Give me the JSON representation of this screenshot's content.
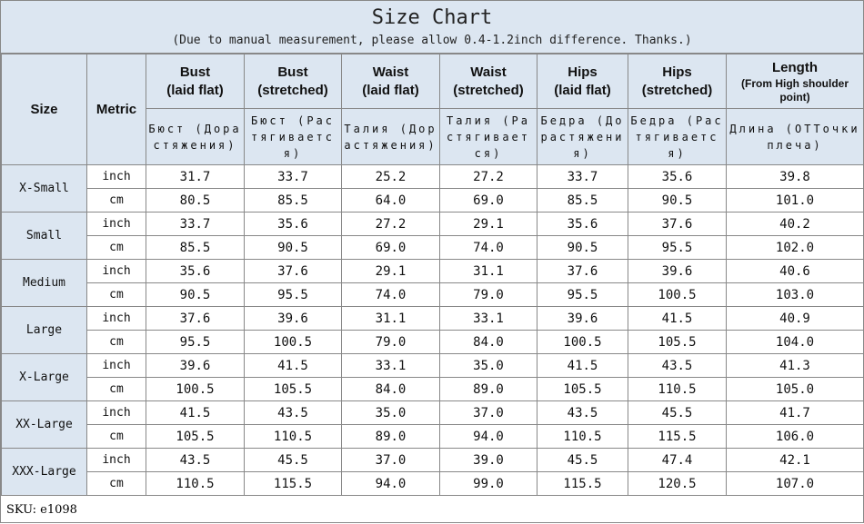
{
  "title": "Size Chart",
  "subtitle": "(Due to manual measurement, please allow 0.4-1.2inch difference. Thanks.)",
  "table": {
    "size_header": "Size",
    "metric_header": "Metric",
    "columns": [
      {
        "en": [
          "Bust",
          "(laid flat)"
        ],
        "ru": "Бюст (Дорастяжения)"
      },
      {
        "en": [
          "Bust",
          "(stretched)"
        ],
        "ru": "Бюст (Растягивается)"
      },
      {
        "en": [
          "Waist",
          "(laid flat)"
        ],
        "ru": "Талия (Дорастяжения)"
      },
      {
        "en": [
          "Waist",
          "(stretched)"
        ],
        "ru": "Талия (Растягивается)"
      },
      {
        "en": [
          "Hips",
          "(laid flat)"
        ],
        "ru": "Бедра (Дорастяжения)"
      },
      {
        "en": [
          "Hips",
          "(stretched)"
        ],
        "ru": "Бедра (Растягивается)"
      },
      {
        "en": [
          "Length",
          "(From High shoulder point)"
        ],
        "ru": "Длина (ОТТочкиплеча)"
      }
    ],
    "rows": [
      {
        "size": "X-Small",
        "units": [
          {
            "unit": "inch",
            "values": [
              "31.7",
              "33.7",
              "25.2",
              "27.2",
              "33.7",
              "35.6",
              "39.8"
            ]
          },
          {
            "unit": "cm",
            "values": [
              "80.5",
              "85.5",
              "64.0",
              "69.0",
              "85.5",
              "90.5",
              "101.0"
            ]
          }
        ]
      },
      {
        "size": "Small",
        "units": [
          {
            "unit": "inch",
            "values": [
              "33.7",
              "35.6",
              "27.2",
              "29.1",
              "35.6",
              "37.6",
              "40.2"
            ]
          },
          {
            "unit": "cm",
            "values": [
              "85.5",
              "90.5",
              "69.0",
              "74.0",
              "90.5",
              "95.5",
              "102.0"
            ]
          }
        ]
      },
      {
        "size": "Medium",
        "units": [
          {
            "unit": "inch",
            "values": [
              "35.6",
              "37.6",
              "29.1",
              "31.1",
              "37.6",
              "39.6",
              "40.6"
            ]
          },
          {
            "unit": "cm",
            "values": [
              "90.5",
              "95.5",
              "74.0",
              "79.0",
              "95.5",
              "100.5",
              "103.0"
            ]
          }
        ]
      },
      {
        "size": "Large",
        "units": [
          {
            "unit": "inch",
            "values": [
              "37.6",
              "39.6",
              "31.1",
              "33.1",
              "39.6",
              "41.5",
              "40.9"
            ]
          },
          {
            "unit": "cm",
            "values": [
              "95.5",
              "100.5",
              "79.0",
              "84.0",
              "100.5",
              "105.5",
              "104.0"
            ]
          }
        ]
      },
      {
        "size": "X-Large",
        "units": [
          {
            "unit": "inch",
            "values": [
              "39.6",
              "41.5",
              "33.1",
              "35.0",
              "41.5",
              "43.5",
              "41.3"
            ]
          },
          {
            "unit": "cm",
            "values": [
              "100.5",
              "105.5",
              "84.0",
              "89.0",
              "105.5",
              "110.5",
              "105.0"
            ]
          }
        ]
      },
      {
        "size": "XX-Large",
        "units": [
          {
            "unit": "inch",
            "values": [
              "41.5",
              "43.5",
              "35.0",
              "37.0",
              "43.5",
              "45.5",
              "41.7"
            ]
          },
          {
            "unit": "cm",
            "values": [
              "105.5",
              "110.5",
              "89.0",
              "94.0",
              "110.5",
              "115.5",
              "106.0"
            ]
          }
        ]
      },
      {
        "size": "XXX-Large",
        "units": [
          {
            "unit": "inch",
            "values": [
              "43.5",
              "45.5",
              "37.0",
              "39.0",
              "45.5",
              "47.4",
              "42.1"
            ]
          },
          {
            "unit": "cm",
            "values": [
              "110.5",
              "115.5",
              "94.0",
              "99.0",
              "115.5",
              "120.5",
              "107.0"
            ]
          }
        ]
      }
    ]
  },
  "footer": "SKU: e1098"
}
